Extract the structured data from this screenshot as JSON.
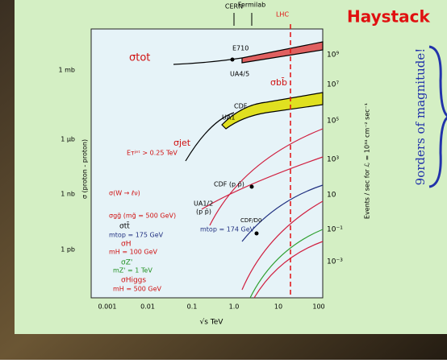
{
  "header": {
    "title": "Haystack"
  },
  "annotation": "9orders of magnitude!",
  "plot": {
    "experiments": [
      "CERN",
      "Fermilab",
      "LHC"
    ],
    "y_label": "σ (proton - proton)",
    "y2_label": "Events / sec for ℒ = 10³⁴ cm⁻² sec⁻¹",
    "x_label": "√s   TeV",
    "y_ticks": [
      "1 mb",
      "1 μb",
      "1 nb",
      "1 pb"
    ],
    "y2_ticks": [
      "10⁹",
      "10⁷",
      "10⁵",
      "10³",
      "10",
      "10⁻¹",
      "10⁻³"
    ],
    "x_ticks": [
      "0.001",
      "0.01",
      "0.1",
      "1.0",
      "10",
      "100"
    ],
    "labels": [
      "σtot",
      "E710",
      "UA4/5",
      "σbb̄",
      "CDF",
      "UA1",
      "σjet",
      "Eᴛʲᵉᵗ > 0.25 TeV",
      "σ(W → ℓν)",
      "CDF (p p̄)",
      "UA1/2",
      "(p p̄)",
      "σgg̃ (mg̃ = 500 GeV)",
      "σtt̄",
      "mtop = 175 GeV",
      "CDF/D0",
      "mtop = 174 GeV",
      "σH",
      "mH = 100 GeV",
      "σZ'",
      "mZ' = 1 TeV",
      "σHiggs",
      "mH = 500 GeV"
    ]
  }
}
